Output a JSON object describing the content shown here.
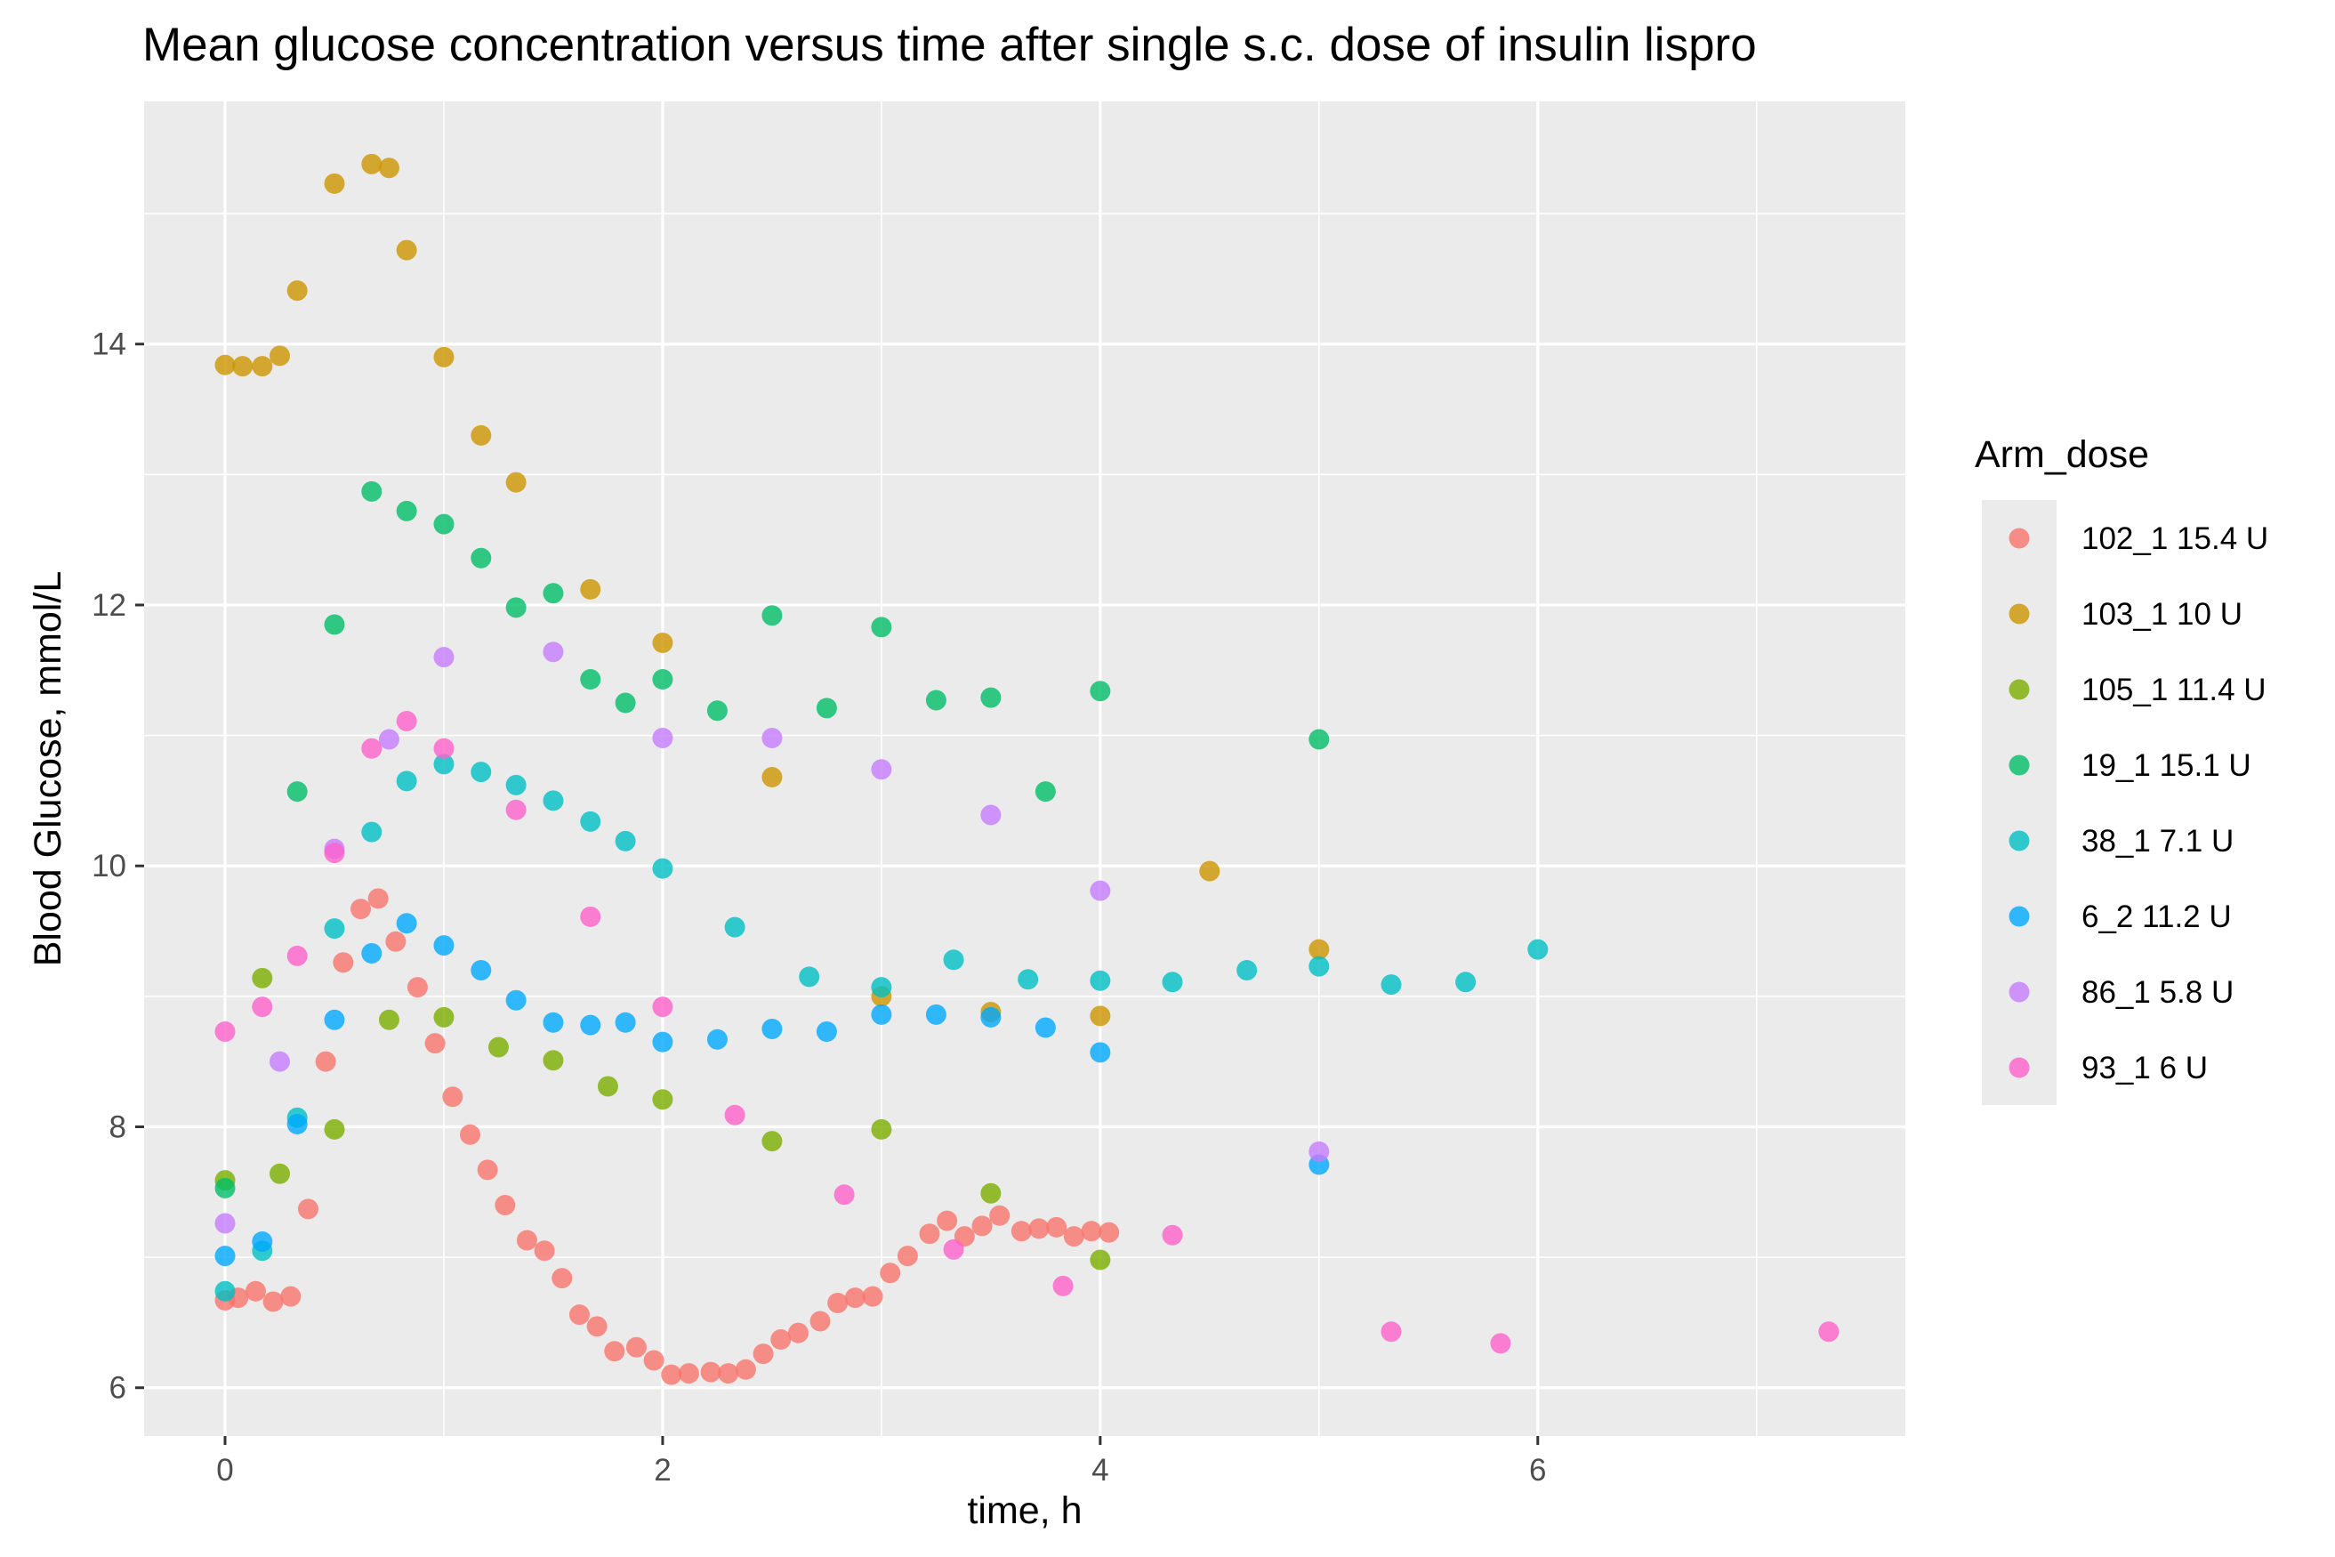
{
  "chart_data": {
    "type": "scatter",
    "title": "Mean glucose concentration versus time after single s.c. dose of insulin lispro",
    "xlabel": "time, h",
    "ylabel": "Blood Glucose, mmol/L",
    "xlim": [
      -0.37,
      7.68
    ],
    "ylim": [
      5.63,
      15.86
    ],
    "xticks": [
      0,
      2,
      4,
      6
    ],
    "yticks": [
      6,
      8,
      10,
      12,
      14
    ],
    "grid": true,
    "legend": {
      "title": "Arm_dose",
      "position": "right"
    },
    "series": [
      {
        "name": "102_1 15.4 U",
        "color": "#F8766D",
        "points": [
          [
            0,
            6.67
          ],
          [
            0.06,
            6.69
          ],
          [
            0.14,
            6.74
          ],
          [
            0.22,
            6.66
          ],
          [
            0.3,
            6.7
          ],
          [
            0.38,
            7.37
          ],
          [
            0.46,
            8.5
          ],
          [
            0.54,
            9.26
          ],
          [
            0.62,
            9.67
          ],
          [
            0.7,
            9.75
          ],
          [
            0.78,
            9.42
          ],
          [
            0.88,
            9.07
          ],
          [
            0.96,
            8.64
          ],
          [
            1.04,
            8.23
          ],
          [
            1.12,
            7.94
          ],
          [
            1.2,
            7.67
          ],
          [
            1.28,
            7.4
          ],
          [
            1.38,
            7.13
          ],
          [
            1.46,
            7.05
          ],
          [
            1.54,
            6.84
          ],
          [
            1.62,
            6.56
          ],
          [
            1.7,
            6.47
          ],
          [
            1.78,
            6.28
          ],
          [
            1.88,
            6.31
          ],
          [
            1.96,
            6.21
          ],
          [
            2.04,
            6.1
          ],
          [
            2.12,
            6.11
          ],
          [
            2.22,
            6.12
          ],
          [
            2.3,
            6.11
          ],
          [
            2.38,
            6.14
          ],
          [
            2.46,
            6.26
          ],
          [
            2.54,
            6.37
          ],
          [
            2.62,
            6.42
          ],
          [
            2.72,
            6.51
          ],
          [
            2.8,
            6.65
          ],
          [
            2.88,
            6.69
          ],
          [
            2.96,
            6.7
          ],
          [
            3.04,
            6.88
          ],
          [
            3.12,
            7.01
          ],
          [
            3.22,
            7.18
          ],
          [
            3.3,
            7.28
          ],
          [
            3.38,
            7.16
          ],
          [
            3.46,
            7.24
          ],
          [
            3.54,
            7.32
          ],
          [
            3.64,
            7.2
          ],
          [
            3.72,
            7.22
          ],
          [
            3.8,
            7.23
          ],
          [
            3.88,
            7.16
          ],
          [
            3.96,
            7.2
          ],
          [
            4.04,
            7.19
          ]
        ]
      },
      {
        "name": "103_1 10 U",
        "color": "#CD9600",
        "points": [
          [
            0,
            13.84
          ],
          [
            0.08,
            13.83
          ],
          [
            0.17,
            13.83
          ],
          [
            0.25,
            13.91
          ],
          [
            0.33,
            14.41
          ],
          [
            0.5,
            15.23
          ],
          [
            0.67,
            15.38
          ],
          [
            0.75,
            15.35
          ],
          [
            0.83,
            14.72
          ],
          [
            1,
            13.9
          ],
          [
            1.17,
            13.3
          ],
          [
            1.33,
            12.94
          ],
          [
            1.67,
            12.12
          ],
          [
            2,
            11.71
          ],
          [
            2.5,
            10.68
          ],
          [
            3,
            9.0
          ],
          [
            3.5,
            8.88
          ],
          [
            4,
            8.85
          ],
          [
            4.5,
            9.96
          ],
          [
            5,
            9.36
          ]
        ]
      },
      {
        "name": "105_1 11.4 U",
        "color": "#7CAE00",
        "points": [
          [
            0,
            7.59
          ],
          [
            0.17,
            9.14
          ],
          [
            0.25,
            7.64
          ],
          [
            0.5,
            7.98
          ],
          [
            0.75,
            8.82
          ],
          [
            1,
            8.84
          ],
          [
            1.25,
            8.61
          ],
          [
            1.5,
            8.51
          ],
          [
            1.75,
            8.31
          ],
          [
            2,
            8.21
          ],
          [
            2.5,
            7.89
          ],
          [
            3,
            7.98
          ],
          [
            3.5,
            7.49
          ],
          [
            4,
            6.98
          ]
        ]
      },
      {
        "name": "19_1 15.1 U",
        "color": "#00BE67",
        "points": [
          [
            0,
            7.53
          ],
          [
            0.33,
            10.57
          ],
          [
            0.5,
            11.85
          ],
          [
            0.67,
            12.87
          ],
          [
            0.83,
            12.72
          ],
          [
            1,
            12.62
          ],
          [
            1.17,
            12.36
          ],
          [
            1.33,
            11.98
          ],
          [
            1.5,
            12.09
          ],
          [
            1.67,
            11.43
          ],
          [
            1.83,
            11.25
          ],
          [
            2,
            11.43
          ],
          [
            2.25,
            11.19
          ],
          [
            2.5,
            11.92
          ],
          [
            2.75,
            11.21
          ],
          [
            3,
            11.83
          ],
          [
            3.25,
            11.27
          ],
          [
            3.5,
            11.29
          ],
          [
            3.75,
            10.57
          ],
          [
            4,
            11.34
          ],
          [
            5,
            10.97
          ]
        ]
      },
      {
        "name": "38_1 7.1 U",
        "color": "#00BFC4",
        "points": [
          [
            0,
            6.74
          ],
          [
            0.17,
            7.05
          ],
          [
            0.33,
            8.07
          ],
          [
            0.5,
            9.52
          ],
          [
            0.67,
            10.26
          ],
          [
            0.83,
            10.65
          ],
          [
            1,
            10.78
          ],
          [
            1.17,
            10.72
          ],
          [
            1.33,
            10.62
          ],
          [
            1.5,
            10.5
          ],
          [
            1.67,
            10.34
          ],
          [
            1.83,
            10.19
          ],
          [
            2,
            9.98
          ],
          [
            2.33,
            9.53
          ],
          [
            2.67,
            9.15
          ],
          [
            3,
            9.07
          ],
          [
            3.33,
            9.28
          ],
          [
            3.67,
            9.13
          ],
          [
            4,
            9.12
          ],
          [
            4.33,
            9.11
          ],
          [
            4.67,
            9.2
          ],
          [
            5,
            9.23
          ],
          [
            5.33,
            9.09
          ],
          [
            5.67,
            9.11
          ],
          [
            6,
            9.36
          ]
        ]
      },
      {
        "name": "6_2 11.2 U",
        "color": "#00A9FF",
        "points": [
          [
            0,
            7.01
          ],
          [
            0.17,
            7.12
          ],
          [
            0.33,
            8.02
          ],
          [
            0.5,
            8.82
          ],
          [
            0.67,
            9.33
          ],
          [
            0.83,
            9.56
          ],
          [
            1,
            9.39
          ],
          [
            1.17,
            9.2
          ],
          [
            1.33,
            8.97
          ],
          [
            1.5,
            8.8
          ],
          [
            1.67,
            8.78
          ],
          [
            1.83,
            8.8
          ],
          [
            2,
            8.65
          ],
          [
            2.25,
            8.67
          ],
          [
            2.5,
            8.75
          ],
          [
            2.75,
            8.73
          ],
          [
            3,
            8.86
          ],
          [
            3.25,
            8.86
          ],
          [
            3.5,
            8.84
          ],
          [
            3.75,
            8.76
          ],
          [
            4,
            8.57
          ],
          [
            5,
            7.71
          ]
        ]
      },
      {
        "name": "86_1 5.8 U",
        "color": "#C77CFF",
        "points": [
          [
            0,
            7.26
          ],
          [
            0.25,
            8.5
          ],
          [
            0.5,
            10.13
          ],
          [
            0.75,
            10.97
          ],
          [
            1,
            11.6
          ],
          [
            1.5,
            11.64
          ],
          [
            2,
            10.98
          ],
          [
            2.5,
            10.98
          ],
          [
            3,
            10.74
          ],
          [
            3.5,
            10.39
          ],
          [
            4,
            9.81
          ],
          [
            5,
            7.81
          ]
        ]
      },
      {
        "name": "93_1 6 U",
        "color": "#FF61CC",
        "points": [
          [
            0,
            8.73
          ],
          [
            0.17,
            8.92
          ],
          [
            0.33,
            9.31
          ],
          [
            0.5,
            10.1
          ],
          [
            0.67,
            10.9
          ],
          [
            0.83,
            11.11
          ],
          [
            1,
            10.9
          ],
          [
            1.33,
            10.43
          ],
          [
            1.67,
            9.61
          ],
          [
            2,
            8.92
          ],
          [
            2.33,
            8.09
          ],
          [
            2.83,
            7.48
          ],
          [
            3.33,
            7.06
          ],
          [
            3.83,
            6.78
          ],
          [
            4.33,
            7.17
          ],
          [
            5.33,
            6.43
          ],
          [
            5.83,
            6.34
          ],
          [
            7.33,
            6.43
          ]
        ]
      }
    ]
  }
}
